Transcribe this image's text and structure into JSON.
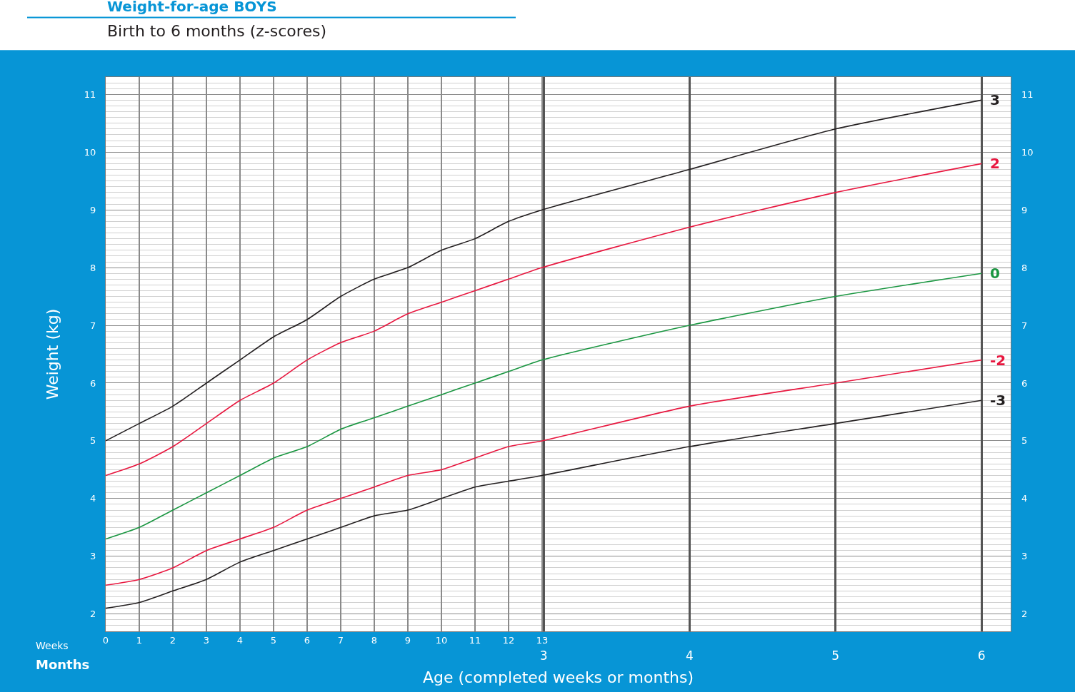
{
  "chart_data": {
    "type": "line",
    "title": "Weight-for-age BOYS",
    "subtitle": "Birth to 6 months (z-scores)",
    "xlabel": "Age (completed weeks or months)",
    "ylabel": "Weight (kg)",
    "annotations": [
      "Weeks",
      "Months"
    ],
    "x": [
      0,
      1,
      2,
      3,
      4,
      5,
      6,
      7,
      8,
      9,
      10,
      11,
      12,
      13,
      17.39,
      21.74,
      26.09
    ],
    "xlim": [
      0,
      26.96
    ],
    "xticks": [
      0,
      1,
      2,
      3,
      4,
      5,
      6,
      7,
      8,
      9,
      10,
      11,
      12,
      13
    ],
    "x2lim": [
      0,
      6.2
    ],
    "x2ticks": [
      3,
      4,
      5,
      6
    ],
    "ylim": [
      1.7,
      11.3
    ],
    "yticks": [
      2,
      3,
      4,
      5,
      6,
      7,
      8,
      9,
      10,
      11
    ],
    "y2lim": [
      1.7,
      11.3
    ],
    "y2ticks": [
      2,
      3,
      4,
      5,
      6,
      7,
      8,
      9,
      10,
      11
    ],
    "grid": true,
    "series": [
      {
        "name": "3",
        "color": "#231f20",
        "values": [
          5.0,
          5.3,
          5.6,
          6.0,
          6.4,
          6.8,
          7.1,
          7.5,
          7.8,
          8.0,
          8.3,
          8.5,
          8.8,
          9.0,
          9.7,
          10.4,
          10.9
        ]
      },
      {
        "name": "2",
        "color": "#e8173f",
        "values": [
          4.4,
          4.6,
          4.9,
          5.3,
          5.7,
          6.0,
          6.4,
          6.7,
          6.9,
          7.2,
          7.4,
          7.6,
          7.8,
          8.0,
          8.7,
          9.3,
          9.8
        ]
      },
      {
        "name": "0",
        "color": "#1a9641",
        "values": [
          3.3,
          3.5,
          3.8,
          4.1,
          4.4,
          4.7,
          4.9,
          5.2,
          5.4,
          5.6,
          5.8,
          6.0,
          6.2,
          6.4,
          7.0,
          7.5,
          7.9
        ]
      },
      {
        "name": "-2",
        "color": "#e8173f",
        "values": [
          2.5,
          2.6,
          2.8,
          3.1,
          3.3,
          3.5,
          3.8,
          4.0,
          4.2,
          4.4,
          4.5,
          4.7,
          4.9,
          5.0,
          5.6,
          6.0,
          6.4
        ]
      },
      {
        "name": "-3",
        "color": "#231f20",
        "values": [
          2.1,
          2.2,
          2.4,
          2.6,
          2.9,
          3.1,
          3.3,
          3.5,
          3.7,
          3.8,
          4.0,
          4.2,
          4.3,
          4.4,
          4.9,
          5.3,
          5.7
        ]
      }
    ]
  }
}
